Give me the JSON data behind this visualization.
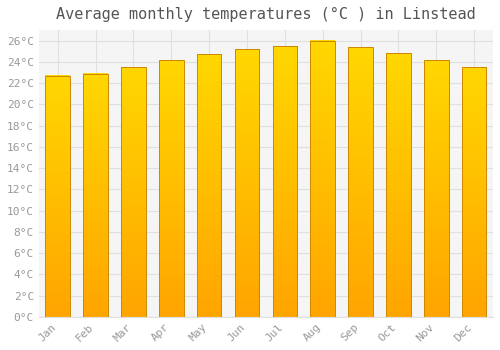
{
  "title": "Average monthly temperatures (°C ) in Linstead",
  "months": [
    "Jan",
    "Feb",
    "Mar",
    "Apr",
    "May",
    "Jun",
    "Jul",
    "Aug",
    "Sep",
    "Oct",
    "Nov",
    "Dec"
  ],
  "temperatures": [
    22.7,
    22.9,
    23.5,
    24.2,
    24.7,
    25.2,
    25.5,
    26.0,
    25.4,
    24.8,
    24.2,
    23.5
  ],
  "bar_color_top": "#FFD700",
  "bar_color_bottom": "#FFA500",
  "bar_edge_color": "#CC8800",
  "background_color": "#FFFFFF",
  "plot_bg_color": "#F5F5F5",
  "grid_color": "#E0E0E0",
  "ylim": [
    0,
    27
  ],
  "ytick_step": 2,
  "title_fontsize": 11,
  "tick_fontsize": 8,
  "tick_label_color": "#999999",
  "title_color": "#555555"
}
